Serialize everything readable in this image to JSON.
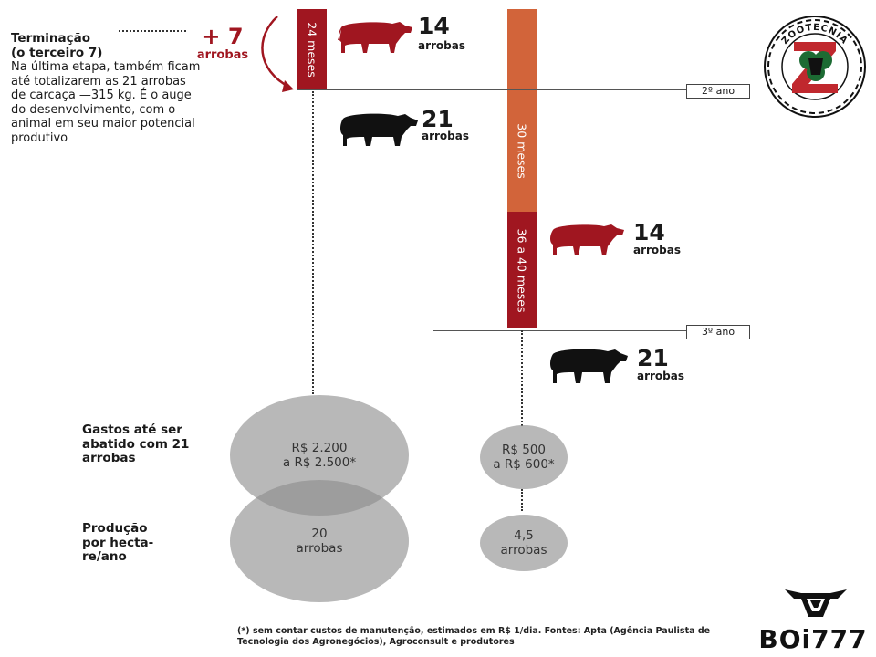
{
  "stage": {
    "title": "Terminação",
    "title_sub": "(o terceiro 7)",
    "description": "Na última etapa, também ficam até totalizarem as 21 arrobas de carcaça —315 kg. É o auge do desenvolvimento, com o animal em seu maior potencial produtivo",
    "gain": "+ 7",
    "gain_unit": "arrobas"
  },
  "timeline": {
    "bar_24": "24 meses",
    "bar_30": "30 meses",
    "bar_36_40": "36 a 40 meses",
    "year_2": "2º ano",
    "year_3": "3º ano"
  },
  "animals": [
    {
      "count": "14",
      "unit": "arrobas",
      "color": "#a01620"
    },
    {
      "count": "21",
      "unit": "arrobas",
      "color": "#111111"
    },
    {
      "count": "14",
      "unit": "arrobas",
      "color": "#a01620"
    },
    {
      "count": "21",
      "unit": "arrobas",
      "color": "#111111"
    }
  ],
  "costs": {
    "label": "Gastos até ser abatido com 21 arrobas",
    "left_line1": "R$ 2.200",
    "left_line2": "a R$ 2.500*",
    "right_line1": "R$ 500",
    "right_line2": "a R$ 600*"
  },
  "production": {
    "label": "Produção por hecta- re/ano",
    "left_value": "20",
    "left_unit": "arrobas",
    "right_value": "4,5",
    "right_unit": "arrobas"
  },
  "footnote": "(*) sem contar custos de manutenção, estimados em R$ 1/dia. Fontes: Apta (Agência Paulista de Tecnologia dos Agronegócios), Agroconsult e produtores",
  "seal": {
    "text": "ZOOTECNIA"
  },
  "brand": {
    "name": "BOi777"
  },
  "colors": {
    "dark_red": "#a01620",
    "orange": "#d2643a",
    "grey_circle": "#8c8c8c",
    "black": "#111111"
  }
}
